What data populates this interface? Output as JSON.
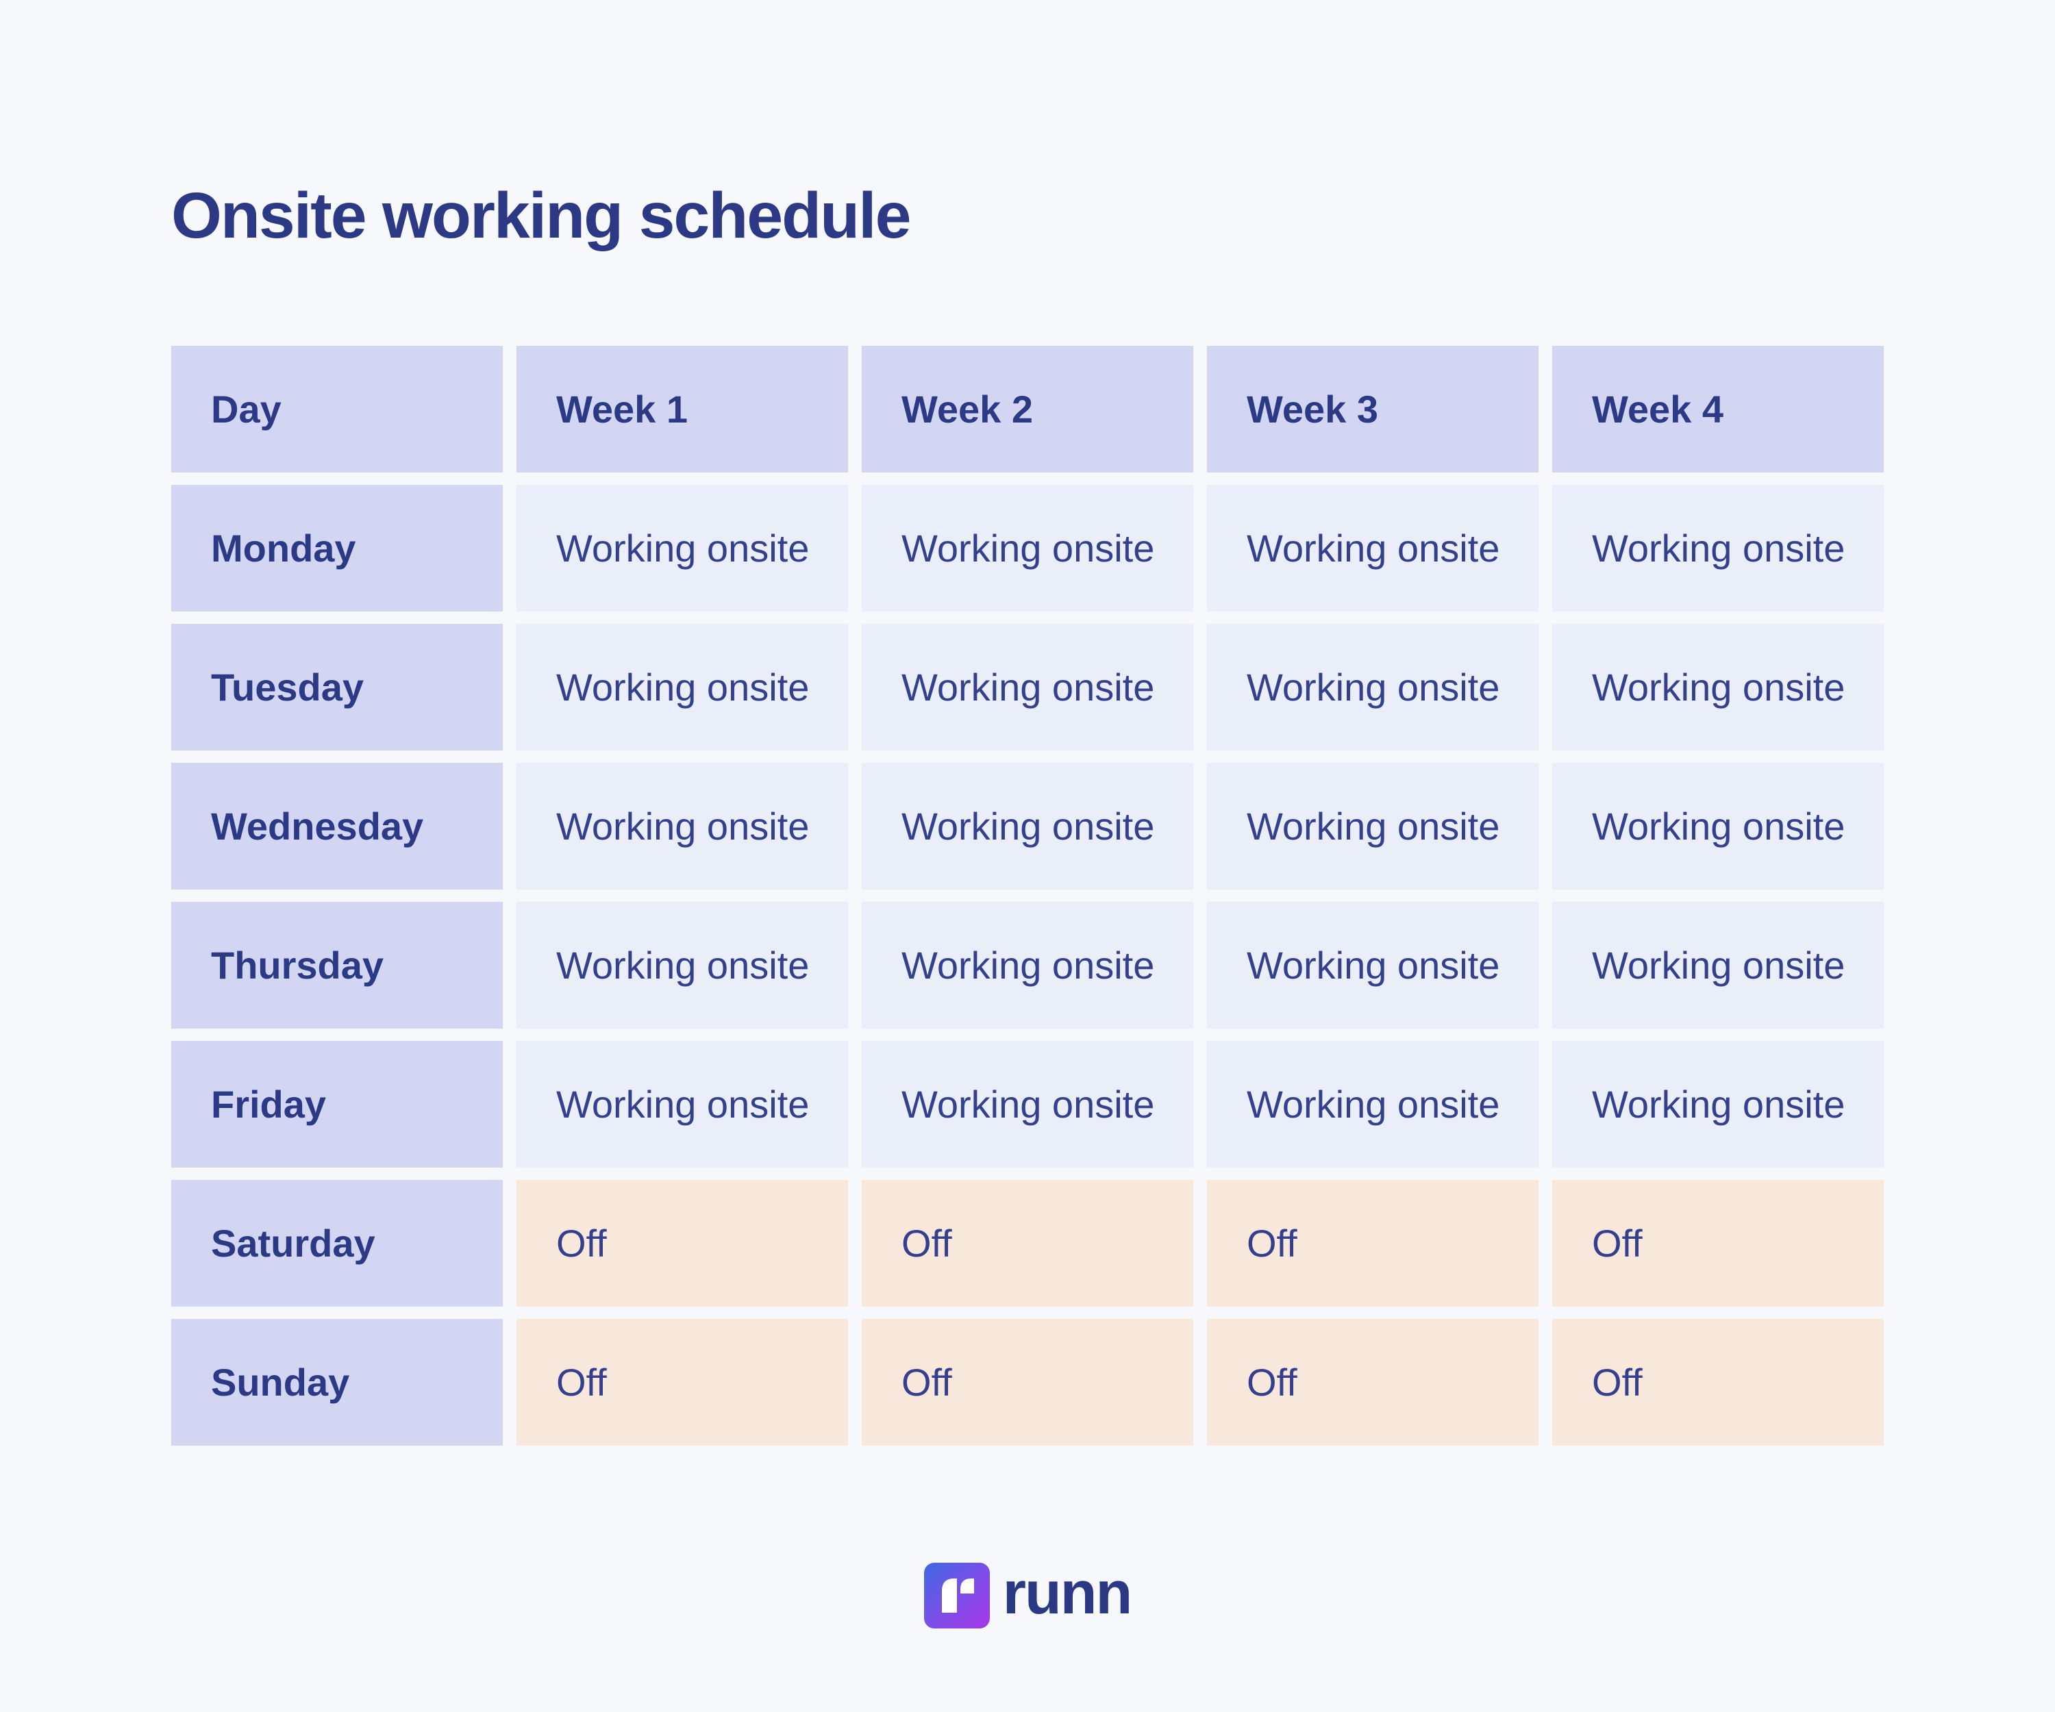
{
  "title": "Onsite working schedule",
  "colors": {
    "page_bg": "#f6f8fb",
    "header_bg": "#d3d6f2",
    "onsite_bg": "#e9eef9",
    "off_bg": "#f8e7db",
    "navy": "#2c3a85",
    "value_text": "#343f8d",
    "logo_navy": "#2b3884",
    "logo_gradient_start": "#3e69e2",
    "logo_gradient_end": "#a837e9"
  },
  "chart_data": {
    "type": "table",
    "title": "Onsite working schedule",
    "columns": [
      "Day",
      "Week 1",
      "Week 2",
      "Week 3",
      "Week 4"
    ],
    "rows": [
      {
        "day": "Monday",
        "status": "onsite",
        "values": [
          "Working onsite",
          "Working onsite",
          "Working onsite",
          "Working onsite"
        ]
      },
      {
        "day": "Tuesday",
        "status": "onsite",
        "values": [
          "Working onsite",
          "Working onsite",
          "Working onsite",
          "Working onsite"
        ]
      },
      {
        "day": "Wednesday",
        "status": "onsite",
        "values": [
          "Working onsite",
          "Working onsite",
          "Working onsite",
          "Working onsite"
        ]
      },
      {
        "day": "Thursday",
        "status": "onsite",
        "values": [
          "Working onsite",
          "Working onsite",
          "Working onsite",
          "Working onsite"
        ]
      },
      {
        "day": "Friday",
        "status": "onsite",
        "values": [
          "Working onsite",
          "Working onsite",
          "Working onsite",
          "Working onsite"
        ]
      },
      {
        "day": "Saturday",
        "status": "off",
        "values": [
          "Off",
          "Off",
          "Off",
          "Off"
        ]
      },
      {
        "day": "Sunday",
        "status": "off",
        "values": [
          "Off",
          "Off",
          "Off",
          "Off"
        ]
      }
    ],
    "legend": "none",
    "grid": "off"
  },
  "logo": {
    "icon": "runn-logo-icon",
    "wordmark": "runn"
  }
}
